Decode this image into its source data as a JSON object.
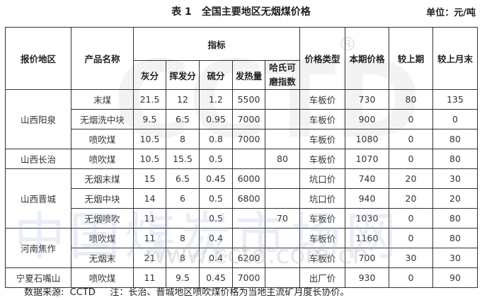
{
  "title": "表 1　全国主要地区无烟煤价格",
  "unit": "单位：元/吨",
  "headers": {
    "region": "报价地区",
    "product": "产品名称",
    "indicators": "指标",
    "ash": "灰分",
    "volatile": "挥发分",
    "sulfur": "硫分",
    "calorific": "发热量",
    "hgi": "哈氏可磨指数",
    "price_type": "价格类型",
    "price": "本期价格",
    "vs_prev": "较上期",
    "vs_month_end": "较上月末"
  },
  "regions": [
    "山西阳泉",
    "山西长治",
    "山西晋城",
    "河南焦作",
    "宁夏石嘴山"
  ],
  "rows": [
    {
      "product": "末煤",
      "ash": "21.5",
      "volatile": "12",
      "sulfur": "1.2",
      "calorific": "5500",
      "hgi": "",
      "price_type": "车板价",
      "price": "730",
      "vs_prev": "80",
      "vs_month_end": "135"
    },
    {
      "product": "无烟洗中块",
      "ash": "9.5",
      "volatile": "6.5",
      "sulfur": "0.95",
      "calorific": "7000",
      "hgi": "",
      "price_type": "车板价",
      "price": "900",
      "vs_prev": "0",
      "vs_month_end": "0"
    },
    {
      "product": "喷吹煤",
      "ash": "10.5",
      "volatile": "8",
      "sulfur": "0.8",
      "calorific": "7000",
      "hgi": "",
      "price_type": "车板价",
      "price": "1080",
      "vs_prev": "0",
      "vs_month_end": "80"
    },
    {
      "product": "喷吹煤",
      "ash": "10.5",
      "volatile": "15.5",
      "sulfur": "0.5",
      "calorific": "",
      "hgi": "80",
      "price_type": "车板价",
      "price": "1070",
      "vs_prev": "0",
      "vs_month_end": "80"
    },
    {
      "product": "无烟末煤",
      "ash": "15",
      "volatile": "6.5",
      "sulfur": "0.45",
      "calorific": "6000",
      "hgi": "",
      "price_type": "坑口价",
      "price": "740",
      "vs_prev": "20",
      "vs_month_end": "30"
    },
    {
      "product": "无烟中块",
      "ash": "14",
      "volatile": "6",
      "sulfur": "0.5",
      "calorific": "6800",
      "hgi": "",
      "price_type": "坑口价",
      "price": "940",
      "vs_prev": "20",
      "vs_month_end": "20"
    },
    {
      "product": "无烟喷吹",
      "ash": "11",
      "volatile": "",
      "sulfur": "0.5",
      "calorific": "",
      "hgi": "70",
      "price_type": "车板价",
      "price": "1030",
      "vs_prev": "0",
      "vs_month_end": "80"
    },
    {
      "product": "喷吹煤",
      "ash": "11",
      "volatile": "8",
      "sulfur": "0.4",
      "calorific": "",
      "hgi": "",
      "price_type": "车板价",
      "price": "1160",
      "vs_prev": "0",
      "vs_month_end": "80"
    },
    {
      "product": "无烟末",
      "ash": "21",
      "volatile": "8",
      "sulfur": "0.4",
      "calorific": "6200",
      "hgi": "",
      "price_type": "车板价",
      "price": "700",
      "vs_prev": "30",
      "vs_month_end": "30"
    },
    {
      "product": "喷吹煤",
      "ash": "11",
      "volatile": "9.5",
      "sulfur": "0.45",
      "calorific": "7000",
      "hgi": "",
      "price_type": "出厂价",
      "price": "930",
      "vs_prev": "0",
      "vs_month_end": "90"
    }
  ],
  "footer": "数据来源:  CCTD     注：长治、晋城地区喷吹煤价格为当地主流矿月度长协价。",
  "watermark": {
    "logo": "CCTD",
    "name": "中国煤炭市场网",
    "url": "www.cctd.com.cn",
    "reg": "®"
  }
}
